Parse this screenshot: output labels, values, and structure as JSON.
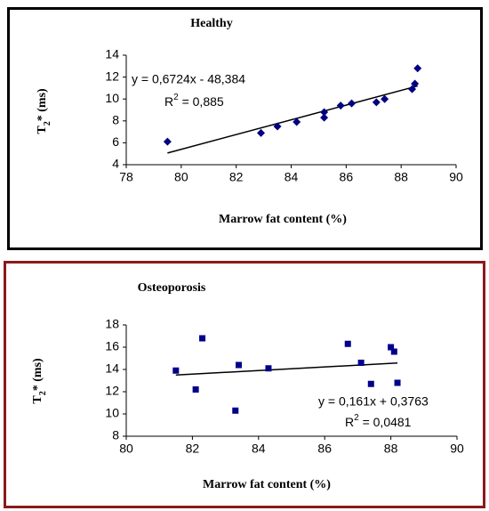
{
  "chart_data": [
    {
      "type": "scatter",
      "title": "Healthy",
      "x_label": "Marrow fat content (%)",
      "y_label": [
        "T",
        "2",
        "* (ms)"
      ],
      "trendline_equation": "y = 0,6724x - 48,384",
      "trendline_r2": [
        "R",
        "2",
        " = 0,885"
      ],
      "marker": "diamond",
      "color": "#000080",
      "trendline_color": "#000000",
      "points": {
        "x": [
          79.5,
          82.9,
          83.5,
          84.2,
          85.2,
          85.2,
          85.8,
          86.2,
          87.1,
          87.4,
          88.4,
          88.5,
          88.6
        ],
        "y": [
          6.1,
          6.9,
          7.5,
          7.9,
          8.3,
          8.8,
          9.4,
          9.6,
          9.7,
          10.0,
          10.9,
          11.4,
          12.8
        ]
      },
      "trendline": {
        "x": [
          79.5,
          88.6
        ],
        "y": [
          5.07,
          11.19
        ]
      },
      "xlim": [
        78,
        90
      ],
      "xticks": [
        78,
        80,
        82,
        84,
        86,
        88,
        90
      ],
      "ylim": [
        4,
        14
      ],
      "yticks": [
        4,
        6,
        8,
        10,
        12,
        14
      ],
      "grid": false
    },
    {
      "type": "scatter",
      "title": "Osteoporosis",
      "x_label": "Marrow fat content (%)",
      "y_label": [
        "T",
        "2",
        "* (ms)"
      ],
      "trendline_equation": "y = 0,161x + 0,3763",
      "trendline_r2": [
        "R",
        "2",
        " = 0,0481"
      ],
      "marker": "square",
      "color": "#00008b",
      "trendline_color": "#000000",
      "points": {
        "x": [
          81.5,
          82.1,
          82.3,
          83.3,
          83.4,
          84.3,
          86.7,
          87.1,
          87.4,
          88.0,
          88.1,
          88.2
        ],
        "y": [
          13.9,
          12.2,
          16.8,
          10.3,
          14.4,
          14.1,
          16.3,
          14.6,
          12.7,
          16.0,
          15.6,
          12.8
        ]
      },
      "trendline": {
        "x": [
          81.5,
          88.2
        ],
        "y": [
          13.5,
          14.58
        ]
      },
      "xlim": [
        80,
        90
      ],
      "xticks": [
        80,
        82,
        84,
        86,
        88,
        90
      ],
      "ylim": [
        8,
        18
      ],
      "yticks": [
        8,
        10,
        12,
        14,
        16,
        18
      ],
      "grid": false
    }
  ]
}
